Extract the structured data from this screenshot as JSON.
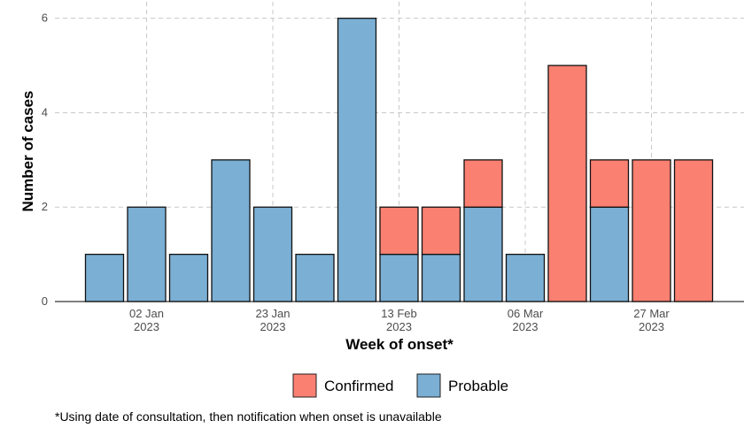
{
  "chart_data": {
    "type": "bar",
    "stacked": true,
    "xlabel": "Week of onset*",
    "ylabel": "Number of cases",
    "ylim": [
      0,
      6.2
    ],
    "yticks": [
      "0",
      "2",
      "4",
      "6"
    ],
    "xticks": [
      {
        "line1": "02 Jan",
        "line2": "2023",
        "week": "2023-01-02"
      },
      {
        "line1": "23 Jan",
        "line2": "2023",
        "week": "2023-01-23"
      },
      {
        "line1": "13 Feb",
        "line2": "2023",
        "week": "2023-02-13"
      },
      {
        "line1": "06 Mar",
        "line2": "2023",
        "week": "2023-03-06"
      },
      {
        "line1": "27 Mar",
        "line2": "2023",
        "week": "2023-03-27"
      }
    ],
    "categories": [
      "2022-12-26",
      "2023-01-02",
      "2023-01-09",
      "2023-01-16",
      "2023-01-23",
      "2023-01-30",
      "2023-02-06",
      "2023-02-13",
      "2023-02-20",
      "2023-02-27",
      "2023-03-06",
      "2023-03-13",
      "2023-03-20",
      "2023-03-27",
      "2023-04-03"
    ],
    "series": [
      {
        "name": "Probable",
        "color": "#7BAFD4",
        "values": [
          1,
          2,
          1,
          3,
          2,
          1,
          6,
          1,
          1,
          2,
          1,
          0,
          2,
          0,
          0
        ]
      },
      {
        "name": "Confirmed",
        "color": "#FA8072",
        "values": [
          0,
          0,
          0,
          0,
          0,
          0,
          0,
          1,
          1,
          1,
          0,
          5,
          1,
          3,
          3
        ]
      }
    ],
    "legend": {
      "position": "bottom",
      "items": [
        "Confirmed",
        "Probable"
      ]
    },
    "grid": true,
    "footnote": "*Using date of consultation, then notification when onset is unavailable"
  }
}
